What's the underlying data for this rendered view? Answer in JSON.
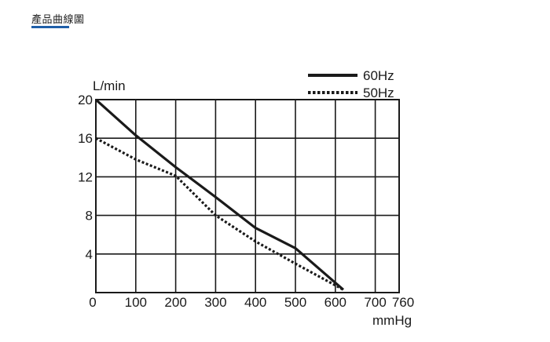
{
  "section": {
    "heading": "產品曲線圖"
  },
  "colors": {
    "accent": "#1f5fa8",
    "line": "#1a1a1a"
  },
  "chart_data": {
    "type": "line",
    "ylabel": "L/min",
    "xlabel": "mmHg",
    "xlim": [
      0,
      760
    ],
    "ylim": [
      0,
      20
    ],
    "x_ticks": [
      "0",
      "100",
      "200",
      "300",
      "400",
      "500",
      "600",
      "700",
      "760"
    ],
    "y_ticks": [
      "4",
      "8",
      "12",
      "16",
      "20"
    ],
    "grid": true,
    "legend_position": "top-right",
    "series": [
      {
        "name": "60Hz",
        "style": "solid",
        "x": [
          0,
          100,
          200,
          300,
          400,
          500,
          620
        ],
        "y": [
          20,
          16.3,
          13,
          9.9,
          6.7,
          4.6,
          0.3
        ]
      },
      {
        "name": "50Hz",
        "style": "dotted",
        "x": [
          0,
          100,
          200,
          300,
          400,
          500,
          620
        ],
        "y": [
          16,
          13.8,
          12.1,
          8,
          5.3,
          3,
          0.3
        ]
      }
    ]
  }
}
